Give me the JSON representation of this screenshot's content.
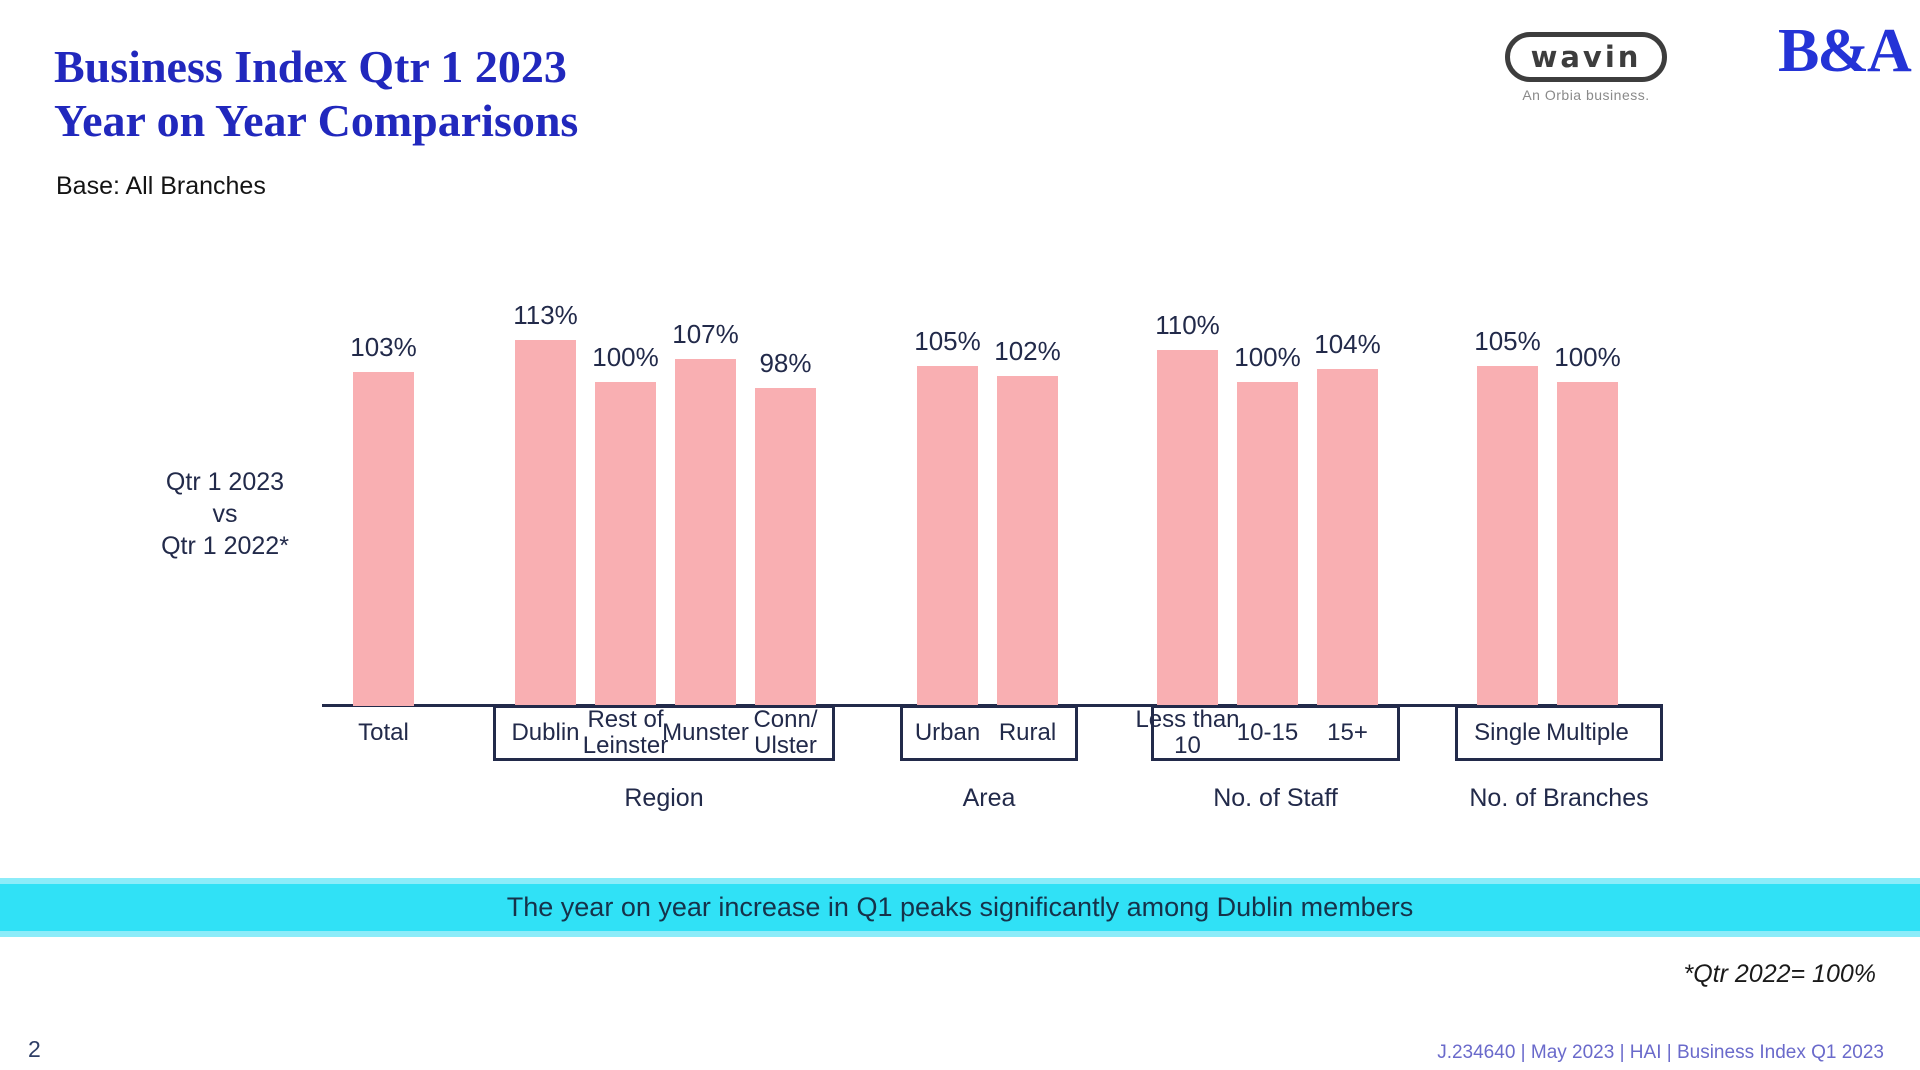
{
  "header": {
    "title_line1": "Business Index Qtr 1 2023",
    "title_line2": "Year on Year Comparisons",
    "base": "Base: All Branches"
  },
  "logos": {
    "wavin": "wavin",
    "wavin_tagline": "An Orbia business.",
    "ba": "B&A"
  },
  "chart_data": {
    "type": "bar",
    "unit": "%",
    "series_label": "Qtr 1 2023\nvs\nQtr 1 2022*",
    "bar_color": "#f9afb2",
    "label_color": "#222a4a",
    "value_base": "Qtr 1 2022 = 100%",
    "ylim": [
      0,
      120
    ],
    "grid": false,
    "legend": "none",
    "groups": [
      {
        "label": "",
        "boxed": false,
        "bars": [
          {
            "category": "Total",
            "value": 103
          }
        ]
      },
      {
        "label": "Region",
        "boxed": true,
        "bars": [
          {
            "category": "Dublin",
            "value": 113
          },
          {
            "category": "Rest of\nLeinster",
            "value": 100
          },
          {
            "category": "Munster",
            "value": 107
          },
          {
            "category": "Conn/\nUlster",
            "value": 98
          }
        ]
      },
      {
        "label": "Area",
        "boxed": true,
        "bars": [
          {
            "category": "Urban",
            "value": 105
          },
          {
            "category": "Rural",
            "value": 102
          }
        ]
      },
      {
        "label": "No. of Staff",
        "boxed": true,
        "bars": [
          {
            "category": "Less than\n10",
            "value": 110
          },
          {
            "category": "10-15",
            "value": 100
          },
          {
            "category": "15+",
            "value": 104
          }
        ]
      },
      {
        "label": "No. of Branches",
        "boxed": true,
        "bars": [
          {
            "category": "Single",
            "value": 105
          },
          {
            "category": "Multiple",
            "value": 100
          }
        ]
      }
    ],
    "footnote": "*Qtr 2022= 100%"
  },
  "banner": {
    "text": "The year on year increase in Q1 peaks significantly among Dublin members",
    "bg_color": "#30e1f6"
  },
  "footer": {
    "page": "2",
    "right": "J.234640 | May 2023 | HAI | Business Index Q1 2023"
  }
}
